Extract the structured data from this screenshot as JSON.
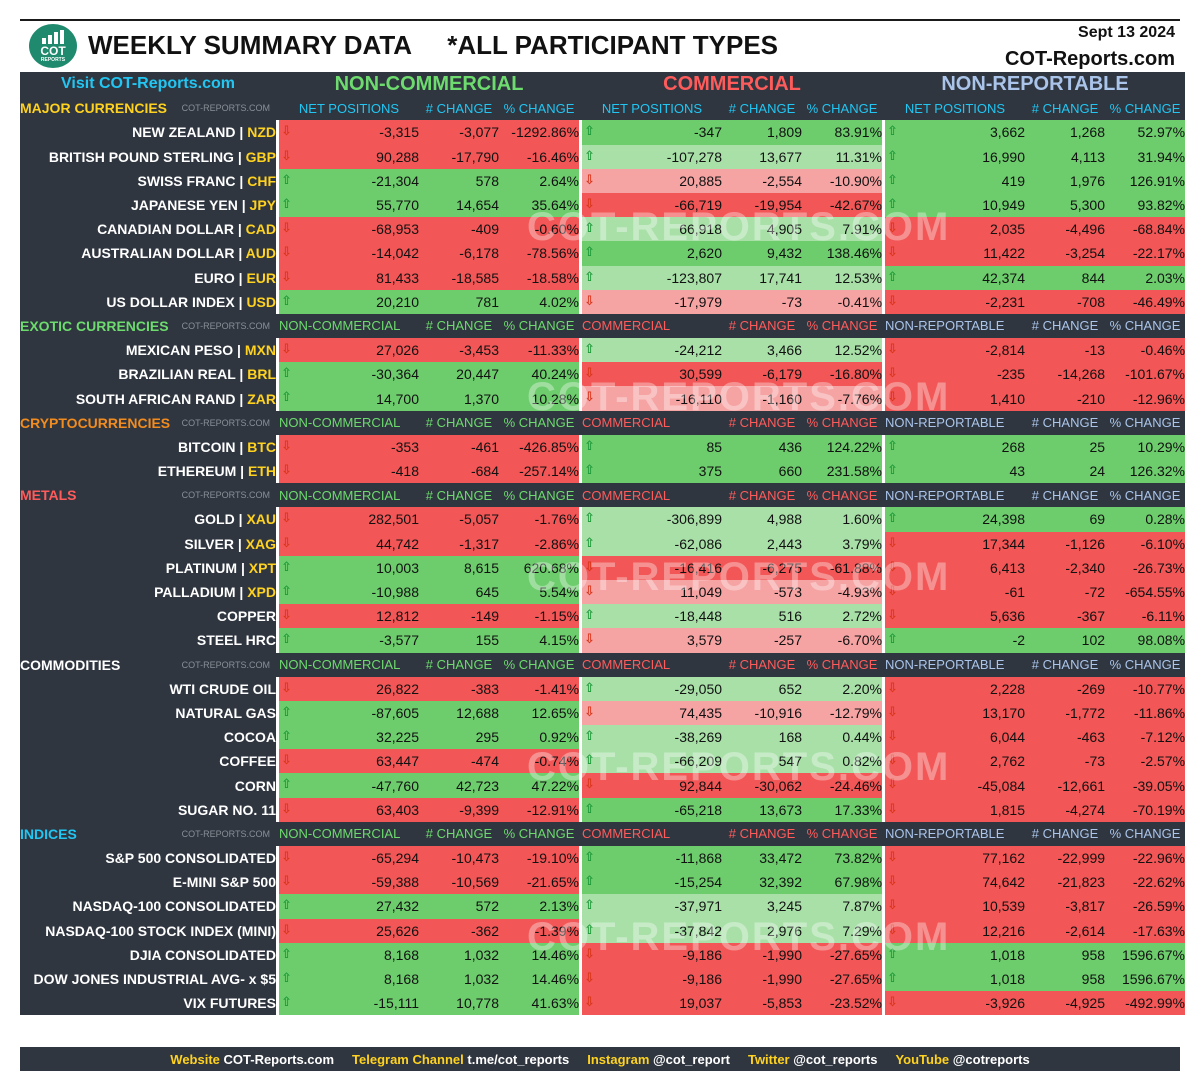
{
  "header": {
    "title": "WEEKLY SUMMARY DATA     *ALL PARTICIPANT TYPES",
    "date": "Sept 13 2024",
    "site": "COT-Reports.com",
    "logo": {
      "top": "COT",
      "bottom": "REPORTS"
    },
    "visit_link": "Visit COT-Reports.com"
  },
  "groups": [
    "NON-COMMERCIAL",
    "COMMERCIAL",
    "NON-REPORTABLE"
  ],
  "first_section_columns": [
    "NET POSITIONS",
    "# CHANGE",
    "% CHANGE"
  ],
  "section_columns": {
    "non_commercial": [
      "NON-COMMERCIAL",
      "# CHANGE",
      "% CHANGE"
    ],
    "commercial": [
      "COMMERCIAL",
      "# CHANGE",
      "% CHANGE"
    ],
    "non_reportable": [
      "NON-REPORTABLE",
      "# CHANGE",
      "% CHANGE"
    ]
  },
  "section_watermark": "COT-REPORTS.COM",
  "background_watermark": "COT-REPORTS.COM",
  "colors": {
    "panel": "#2f3640",
    "green_strong": "#6dcd6d",
    "green_light": "#a8e0a8",
    "red_strong": "#f25656",
    "red_light": "#f6a3a3",
    "code_yellow": "#ffd21f"
  },
  "sections": [
    {
      "name": "MAJOR CURRENCIES",
      "color": "#ffd21f",
      "rows": [
        {
          "name": "NEW ZEALAND",
          "code": "NZD",
          "nc": [
            "-3,315",
            "-3,077",
            "-1292.86%"
          ],
          "cm": [
            "-347",
            "1,809",
            "83.91%"
          ],
          "nr": [
            "3,662",
            "1,268",
            "52.97%"
          ]
        },
        {
          "name": "BRITISH POUND STERLING",
          "code": "GBP",
          "nc": [
            "90,288",
            "-17,790",
            "-16.46%"
          ],
          "cm": [
            "-107,278",
            "13,677",
            "11.31%"
          ],
          "nr": [
            "16,990",
            "4,113",
            "31.94%"
          ]
        },
        {
          "name": "SWISS FRANC",
          "code": "CHF",
          "nc": [
            "-21,304",
            "578",
            "2.64%"
          ],
          "cm": [
            "20,885",
            "-2,554",
            "-10.90%"
          ],
          "nr": [
            "419",
            "1,976",
            "126.91%"
          ]
        },
        {
          "name": "JAPANESE YEN",
          "code": "JPY",
          "nc": [
            "55,770",
            "14,654",
            "35.64%"
          ],
          "cm": [
            "-66,719",
            "-19,954",
            "-42.67%"
          ],
          "nr": [
            "10,949",
            "5,300",
            "93.82%"
          ]
        },
        {
          "name": "CANADIAN DOLLAR",
          "code": "CAD",
          "nc": [
            "-68,953",
            "-409",
            "-0.60%"
          ],
          "cm": [
            "66,918",
            "4,905",
            "7.91%"
          ],
          "nr": [
            "2,035",
            "-4,496",
            "-68.84%"
          ]
        },
        {
          "name": "AUSTRALIAN DOLLAR",
          "code": "AUD",
          "nc": [
            "-14,042",
            "-6,178",
            "-78.56%"
          ],
          "cm": [
            "2,620",
            "9,432",
            "138.46%"
          ],
          "nr": [
            "11,422",
            "-3,254",
            "-22.17%"
          ]
        },
        {
          "name": "EURO",
          "code": "EUR",
          "nc": [
            "81,433",
            "-18,585",
            "-18.58%"
          ],
          "cm": [
            "-123,807",
            "17,741",
            "12.53%"
          ],
          "nr": [
            "42,374",
            "844",
            "2.03%"
          ]
        },
        {
          "name": "US DOLLAR INDEX",
          "code": "USD",
          "nc": [
            "20,210",
            "781",
            "4.02%"
          ],
          "cm": [
            "-17,979",
            "-73",
            "-0.41%"
          ],
          "nr": [
            "-2,231",
            "-708",
            "-46.49%"
          ]
        }
      ]
    },
    {
      "name": "EXOTIC CURRENCIES",
      "color": "#6ddb6d",
      "rows": [
        {
          "name": "MEXICAN PESO",
          "code": "MXN",
          "nc": [
            "27,026",
            "-3,453",
            "-11.33%"
          ],
          "cm": [
            "-24,212",
            "3,466",
            "12.52%"
          ],
          "nr": [
            "-2,814",
            "-13",
            "-0.46%"
          ]
        },
        {
          "name": "BRAZILIAN REAL",
          "code": "BRL",
          "nc": [
            "-30,364",
            "20,447",
            "40.24%"
          ],
          "cm": [
            "30,599",
            "-6,179",
            "-16.80%"
          ],
          "nr": [
            "-235",
            "-14,268",
            "-101.67%"
          ]
        },
        {
          "name": "SOUTH AFRICAN RAND",
          "code": "ZAR",
          "nc": [
            "14,700",
            "1,370",
            "10.28%"
          ],
          "cm": [
            "-16,110",
            "-1,160",
            "-7.76%"
          ],
          "nr": [
            "1,410",
            "-210",
            "-12.96%"
          ]
        }
      ]
    },
    {
      "name": "CRYPTOCURRENCIES",
      "color": "#f28c1e",
      "rows": [
        {
          "name": "BITCOIN",
          "code": "BTC",
          "nc": [
            "-353",
            "-461",
            "-426.85%"
          ],
          "cm": [
            "85",
            "436",
            "124.22%"
          ],
          "nr": [
            "268",
            "25",
            "10.29%"
          ]
        },
        {
          "name": "ETHEREUM",
          "code": "ETH",
          "nc": [
            "-418",
            "-684",
            "-257.14%"
          ],
          "cm": [
            "375",
            "660",
            "231.58%"
          ],
          "nr": [
            "43",
            "24",
            "126.32%"
          ]
        }
      ]
    },
    {
      "name": "METALS",
      "color": "#ff5b5b",
      "rows": [
        {
          "name": "GOLD",
          "code": "XAU",
          "nc": [
            "282,501",
            "-5,057",
            "-1.76%"
          ],
          "cm": [
            "-306,899",
            "4,988",
            "1.60%"
          ],
          "nr": [
            "24,398",
            "69",
            "0.28%"
          ]
        },
        {
          "name": "SILVER",
          "code": "XAG",
          "nc": [
            "44,742",
            "-1,317",
            "-2.86%"
          ],
          "cm": [
            "-62,086",
            "2,443",
            "3.79%"
          ],
          "nr": [
            "17,344",
            "-1,126",
            "-6.10%"
          ]
        },
        {
          "name": "PLATINUM",
          "code": "XPT",
          "nc": [
            "10,003",
            "8,615",
            "620.68%"
          ],
          "cm": [
            "-16,416",
            "-6,275",
            "-61.88%"
          ],
          "nr": [
            "6,413",
            "-2,340",
            "-26.73%"
          ]
        },
        {
          "name": "PALLADIUM",
          "code": "XPD",
          "nc": [
            "-10,988",
            "645",
            "5.54%"
          ],
          "cm": [
            "11,049",
            "-573",
            "-4.93%"
          ],
          "nr": [
            "-61",
            "-72",
            "-654.55%"
          ]
        },
        {
          "name": "COPPER",
          "code": "",
          "nc": [
            "12,812",
            "-149",
            "-1.15%"
          ],
          "cm": [
            "-18,448",
            "516",
            "2.72%"
          ],
          "nr": [
            "5,636",
            "-367",
            "-6.11%"
          ]
        },
        {
          "name": "STEEL HRC",
          "code": "",
          "nc": [
            "-3,577",
            "155",
            "4.15%"
          ],
          "cm": [
            "3,579",
            "-257",
            "-6.70%"
          ],
          "nr": [
            "-2",
            "102",
            "98.08%"
          ]
        }
      ]
    },
    {
      "name": "COMMODITIES",
      "color": "#ffffff",
      "rows": [
        {
          "name": "WTI CRUDE OIL",
          "code": "",
          "nc": [
            "26,822",
            "-383",
            "-1.41%"
          ],
          "cm": [
            "-29,050",
            "652",
            "2.20%"
          ],
          "nr": [
            "2,228",
            "-269",
            "-10.77%"
          ]
        },
        {
          "name": "NATURAL GAS",
          "code": "",
          "nc": [
            "-87,605",
            "12,688",
            "12.65%"
          ],
          "cm": [
            "74,435",
            "-10,916",
            "-12.79%"
          ],
          "nr": [
            "13,170",
            "-1,772",
            "-11.86%"
          ]
        },
        {
          "name": "COCOA",
          "code": "",
          "nc": [
            "32,225",
            "295",
            "0.92%"
          ],
          "cm": [
            "-38,269",
            "168",
            "0.44%"
          ],
          "nr": [
            "6,044",
            "-463",
            "-7.12%"
          ]
        },
        {
          "name": "COFFEE",
          "code": "",
          "nc": [
            "63,447",
            "-474",
            "-0.74%"
          ],
          "cm": [
            "-66,209",
            "547",
            "0.82%"
          ],
          "nr": [
            "2,762",
            "-73",
            "-2.57%"
          ]
        },
        {
          "name": "CORN",
          "code": "",
          "nc": [
            "-47,760",
            "42,723",
            "47.22%"
          ],
          "cm": [
            "92,844",
            "-30,062",
            "-24.46%"
          ],
          "nr": [
            "-45,084",
            "-12,661",
            "-39.05%"
          ]
        },
        {
          "name": "SUGAR NO. 11",
          "code": "",
          "nc": [
            "63,403",
            "-9,399",
            "-12.91%"
          ],
          "cm": [
            "-65,218",
            "13,673",
            "17.33%"
          ],
          "nr": [
            "1,815",
            "-4,274",
            "-70.19%"
          ]
        }
      ]
    },
    {
      "name": "INDICES",
      "color": "#22c6f2",
      "rows": [
        {
          "name": "S&P 500 CONSOLIDATED",
          "code": "",
          "nc": [
            "-65,294",
            "-10,473",
            "-19.10%"
          ],
          "cm": [
            "-11,868",
            "33,472",
            "73.82%"
          ],
          "nr": [
            "77,162",
            "-22,999",
            "-22.96%"
          ]
        },
        {
          "name": "E-MINI S&P 500",
          "code": "",
          "nc": [
            "-59,388",
            "-10,569",
            "-21.65%"
          ],
          "cm": [
            "-15,254",
            "32,392",
            "67.98%"
          ],
          "nr": [
            "74,642",
            "-21,823",
            "-22.62%"
          ]
        },
        {
          "name": "NASDAQ-100 CONSOLIDATED",
          "code": "",
          "nc": [
            "27,432",
            "572",
            "2.13%"
          ],
          "cm": [
            "-37,971",
            "3,245",
            "7.87%"
          ],
          "nr": [
            "10,539",
            "-3,817",
            "-26.59%"
          ]
        },
        {
          "name": "NASDAQ-100 STOCK INDEX (MINI)",
          "code": "",
          "nc": [
            "25,626",
            "-362",
            "-1.39%"
          ],
          "cm": [
            "-37,842",
            "2,976",
            "7.29%"
          ],
          "nr": [
            "12,216",
            "-2,614",
            "-17.63%"
          ]
        },
        {
          "name": "DJIA CONSOLIDATED",
          "code": "",
          "nc": [
            "8,168",
            "1,032",
            "14.46%"
          ],
          "cm": [
            "-9,186",
            "-1,990",
            "-27.65%"
          ],
          "nr": [
            "1,018",
            "958",
            "1596.67%"
          ]
        },
        {
          "name": "DOW JONES INDUSTRIAL AVG- x $5",
          "code": "",
          "nc": [
            "8,168",
            "1,032",
            "14.46%"
          ],
          "cm": [
            "-9,186",
            "-1,990",
            "-27.65%"
          ],
          "nr": [
            "1,018",
            "958",
            "1596.67%"
          ]
        },
        {
          "name": "VIX FUTURES",
          "code": "",
          "nc": [
            "-15,111",
            "10,778",
            "41.63%"
          ],
          "cm": [
            "19,037",
            "-5,853",
            "-23.52%"
          ],
          "nr": [
            "-3,926",
            "-4,925",
            "-492.99%"
          ]
        }
      ]
    }
  ],
  "footer": [
    {
      "label": "Website",
      "value": "COT-Reports.com"
    },
    {
      "label": "Telegram Channel",
      "value": "t.me/cot_reports"
    },
    {
      "label": "Instagram",
      "value": "@cot_report"
    },
    {
      "label": "Twitter",
      "value": "@cot_reports"
    },
    {
      "label": "YouTube",
      "value": "@cotreports"
    }
  ]
}
